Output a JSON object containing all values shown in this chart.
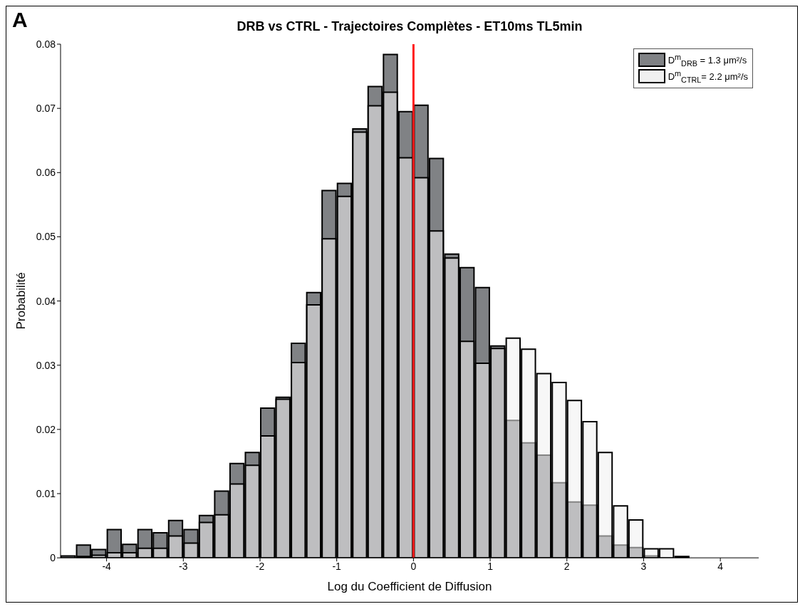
{
  "chart_data": {
    "type": "histogram",
    "title": "DRB vs CTRL - Trajectoires Complètes - ET10ms TL5min",
    "xlabel": "Log du Coefficient de Diffusion",
    "ylabel": "Probabilité",
    "annotations": [
      "A"
    ],
    "bins": [
      -4.6,
      -4.4,
      -4.2,
      -4.0,
      -3.8,
      -3.6,
      -3.4,
      -3.2,
      -3.0,
      -2.8,
      -2.6,
      -2.4,
      -2.2,
      -2.0,
      -1.8,
      -1.6,
      -1.4,
      -1.2,
      -1.0,
      -0.8,
      -0.6,
      -0.4,
      -0.2,
      0,
      0.2,
      0.4,
      0.6,
      0.8,
      1.0,
      1.2,
      1.4,
      1.6,
      1.8,
      2.0,
      2.2,
      2.4,
      2.6,
      2.8,
      3.0,
      3.2,
      3.4,
      3.6
    ],
    "series": [
      {
        "name": "D$^{m}$$_{DRB}$ = 1.3 μm²/s",
        "color": "#808285",
        "values": [
          0.0003,
          0.002,
          0.0013,
          0.0044,
          0.0021,
          0.0044,
          0.0039,
          0.0058,
          0.0044,
          0.0066,
          0.0104,
          0.0147,
          0.0164,
          0.0233,
          0.025,
          0.0334,
          0.0413,
          0.0572,
          0.0583,
          0.0668,
          0.0734,
          0.0784,
          0.0695,
          0.0705,
          0.0622,
          0.0473,
          0.0452,
          0.0421,
          0.033,
          0.0214,
          0.0179,
          0.016,
          0.0117,
          0.0087,
          0.0082,
          0.0034,
          0.002,
          0.0016,
          0.0003,
          0,
          0.0002
        ]
      },
      {
        "name": "D$^{m}$$_{CTRL}$= 2.2 μm²/s",
        "color": "#f0f0f0",
        "values": [
          null,
          0.0002,
          0.0004,
          0.0008,
          0.0008,
          0.0015,
          0.0015,
          0.0034,
          0.0023,
          0.0055,
          0.0067,
          0.0115,
          0.0144,
          0.019,
          0.0247,
          0.0304,
          0.0394,
          0.0497,
          0.0563,
          0.0663,
          0.0704,
          0.0725,
          0.0623,
          0.0592,
          0.0509,
          0.0467,
          0.0337,
          0.0303,
          0.0326,
          0.0342,
          0.0325,
          0.0287,
          0.0273,
          0.0245,
          0.0212,
          0.0164,
          0.0081,
          0.0059,
          0.0014,
          0.0014,
          0
        ]
      }
    ],
    "xlim": [
      -4.6,
      4.5
    ],
    "xticks": [
      -4,
      -3,
      -2,
      -1,
      0,
      1,
      2,
      3,
      4
    ],
    "ylim": [
      0,
      0.08
    ],
    "yticks": [
      0,
      0.01,
      0.02,
      0.03,
      0.04,
      0.05,
      0.06,
      0.07,
      0.08
    ],
    "ref_lines": [
      {
        "axis": "x",
        "value": 0,
        "color": "#ff1a1a"
      }
    ],
    "grid": false,
    "legend": "top right"
  }
}
